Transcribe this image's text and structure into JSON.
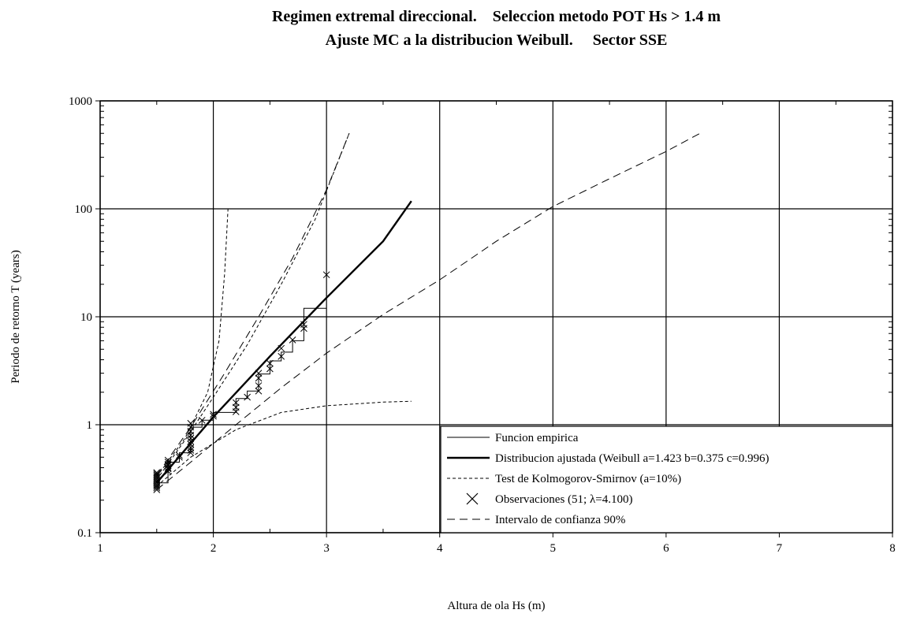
{
  "chart_data": {
    "type": "scatter",
    "title": "Regimen extremal direccional.    Seleccion metodo POT Hs > 1.4 m",
    "subtitle": "Ajuste MC a la distribucion Weibull.     Sector SSE",
    "xlabel": "Altura de ola Hs (m)",
    "ylabel": "Periodo de retorno T (years)",
    "xlim": [
      1,
      8
    ],
    "ylim": [
      0.1,
      1000
    ],
    "yscale": "log",
    "grid": true,
    "x_ticks": [
      "1",
      "2",
      "3",
      "4",
      "5",
      "6",
      "7",
      "8"
    ],
    "y_ticks": [
      "0.1",
      "1",
      "10",
      "100",
      "1000"
    ],
    "legend_position": "bottom-right",
    "series": [
      {
        "name": "Funcion empirica",
        "style": "thin-step",
        "x": [
          1.5,
          1.6,
          1.6,
          1.7,
          1.7,
          1.8,
          1.8,
          1.9,
          1.9,
          2.0,
          2.0,
          2.2,
          2.2,
          2.3,
          2.3,
          2.4,
          2.4,
          2.5,
          2.5,
          2.6,
          2.6,
          2.7,
          2.7,
          2.8,
          2.8,
          3.0
        ],
        "y": [
          0.29,
          0.29,
          0.45,
          0.45,
          0.55,
          0.55,
          0.95,
          0.95,
          1.1,
          1.1,
          1.3,
          1.3,
          1.75,
          1.75,
          2.05,
          2.05,
          2.95,
          2.95,
          3.9,
          3.9,
          4.7,
          4.7,
          6.0,
          6.0,
          12.0,
          12.0
        ]
      },
      {
        "name": "Distribucion ajustada (Weibull  a=1.423 b=0.375 c=0.996)",
        "style": "thick-solid",
        "x": [
          1.5,
          2.0,
          2.5,
          3.0,
          3.5,
          3.75
        ],
        "y": [
          0.29,
          1.18,
          4.3,
          15,
          50,
          118
        ]
      },
      {
        "name": "Test de Kolmogorov-Smirnov (a=10%)",
        "style": "short-dash",
        "lines": [
          {
            "x": [
              1.5,
              1.75,
              1.95,
              2.05,
              2.1,
              2.13
            ],
            "y": [
              0.33,
              0.75,
              2.0,
              6.0,
              25,
              100
            ]
          },
          {
            "x": [
              1.5,
              1.75,
              2.0,
              2.3,
              2.6,
              2.9,
              3.2
            ],
            "y": [
              0.31,
              0.72,
              1.8,
              5.5,
              20,
              80,
              500
            ]
          },
          {
            "x": [
              1.5,
              1.8,
              2.2,
              2.6,
              3.0,
              3.5,
              3.75
            ],
            "y": [
              0.27,
              0.5,
              0.9,
              1.3,
              1.5,
              1.62,
              1.65
            ]
          }
        ]
      },
      {
        "name": "Observaciones (51; λ=4.100)",
        "style": "x-marker",
        "x": [
          1.5,
          1.5,
          1.5,
          1.5,
          1.5,
          1.5,
          1.5,
          1.5,
          1.5,
          1.5,
          1.5,
          1.5,
          1.5,
          1.6,
          1.6,
          1.6,
          1.6,
          1.6,
          1.6,
          1.6,
          1.7,
          1.7,
          1.8,
          1.8,
          1.8,
          1.8,
          1.8,
          1.8,
          1.8,
          1.8,
          1.8,
          1.8,
          1.9,
          2.0,
          2.0,
          2.2,
          2.2,
          2.2,
          2.3,
          2.4,
          2.4,
          2.4,
          2.4,
          2.5,
          2.5,
          2.6,
          2.6,
          2.7,
          2.8,
          2.8,
          3.0
        ],
        "y": [
          0.25,
          0.26,
          0.27,
          0.27,
          0.28,
          0.29,
          0.3,
          0.31,
          0.32,
          0.33,
          0.34,
          0.35,
          0.36,
          0.37,
          0.39,
          0.4,
          0.42,
          0.43,
          0.45,
          0.47,
          0.5,
          0.52,
          0.55,
          0.58,
          0.61,
          0.66,
          0.7,
          0.75,
          0.8,
          0.87,
          0.95,
          1.03,
          1.1,
          1.2,
          1.25,
          1.32,
          1.45,
          1.6,
          1.8,
          2.05,
          2.3,
          2.7,
          3.0,
          3.3,
          3.7,
          4.3,
          5.1,
          6.1,
          7.8,
          8.5,
          24.5
        ]
      },
      {
        "name": "Intervalo de confianza 90%",
        "style": "long-dash",
        "lines": [
          {
            "x": [
              1.5,
              1.8,
              2.1,
              2.4,
              2.7,
              3.0,
              3.2
            ],
            "y": [
              0.34,
              0.95,
              3.0,
              10,
              35,
              150,
              500
            ]
          },
          {
            "x": [
              1.5,
              1.8,
              2.2,
              2.6,
              3.0,
              3.5,
              4.0,
              4.5,
              5.0,
              5.5,
              6.0,
              6.3
            ],
            "y": [
              0.25,
              0.45,
              1.0,
              2.2,
              4.6,
              10.5,
              22,
              50,
              105,
              190,
              340,
              500
            ]
          }
        ]
      }
    ]
  }
}
